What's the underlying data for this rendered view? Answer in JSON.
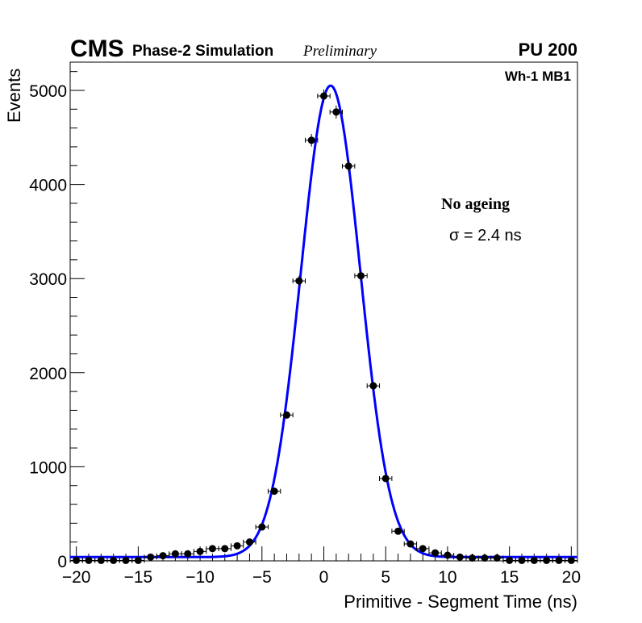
{
  "chart_data": {
    "type": "scatter",
    "header": {
      "experiment": "CMS",
      "subtitle": "Phase-2 Simulation",
      "status": "Preliminary",
      "pileup": "PU 200"
    },
    "region_label": "Wh-1 MB1",
    "annotations": [
      "No ageing",
      "σ = 2.4 ns"
    ],
    "xlabel": "Primitive - Segment Time (ns)",
    "ylabel": "Events",
    "xlim": [
      -20.5,
      20.5
    ],
    "ylim": [
      0,
      5300
    ],
    "xticks": [
      -20,
      -15,
      -10,
      -5,
      0,
      5,
      10,
      15,
      20
    ],
    "xtick_labels": [
      "−20",
      "−15",
      "−10",
      "−5",
      "0",
      "5",
      "10",
      "15",
      "20"
    ],
    "yticks": [
      0,
      1000,
      2000,
      3000,
      4000,
      5000
    ],
    "ytick_labels": [
      "0",
      "1000",
      "2000",
      "3000",
      "4000",
      "5000"
    ],
    "x": [
      -20,
      -19,
      -18,
      -17,
      -16,
      -15,
      -14,
      -13,
      -12,
      -11,
      -10,
      -9,
      -8,
      -7,
      -6,
      -5,
      -4,
      -3,
      -2,
      -1,
      0,
      1,
      2,
      3,
      4,
      5,
      6,
      7,
      8,
      9,
      10,
      11,
      12,
      13,
      14,
      15,
      16,
      17,
      18,
      19,
      20
    ],
    "values": [
      5,
      5,
      5,
      5,
      5,
      5,
      40,
      55,
      75,
      75,
      100,
      130,
      130,
      160,
      200,
      360,
      740,
      1550,
      2975,
      4470,
      4940,
      4770,
      4195,
      3030,
      1860,
      875,
      315,
      180,
      130,
      85,
      60,
      40,
      30,
      30,
      30,
      5,
      5,
      5,
      5,
      5,
      5
    ],
    "fit": {
      "type": "gaussian",
      "amplitude": 5010,
      "mean": 0.55,
      "sigma": 2.4,
      "constant": 40,
      "color": "#0000ff"
    },
    "marker_color": "#000000"
  }
}
